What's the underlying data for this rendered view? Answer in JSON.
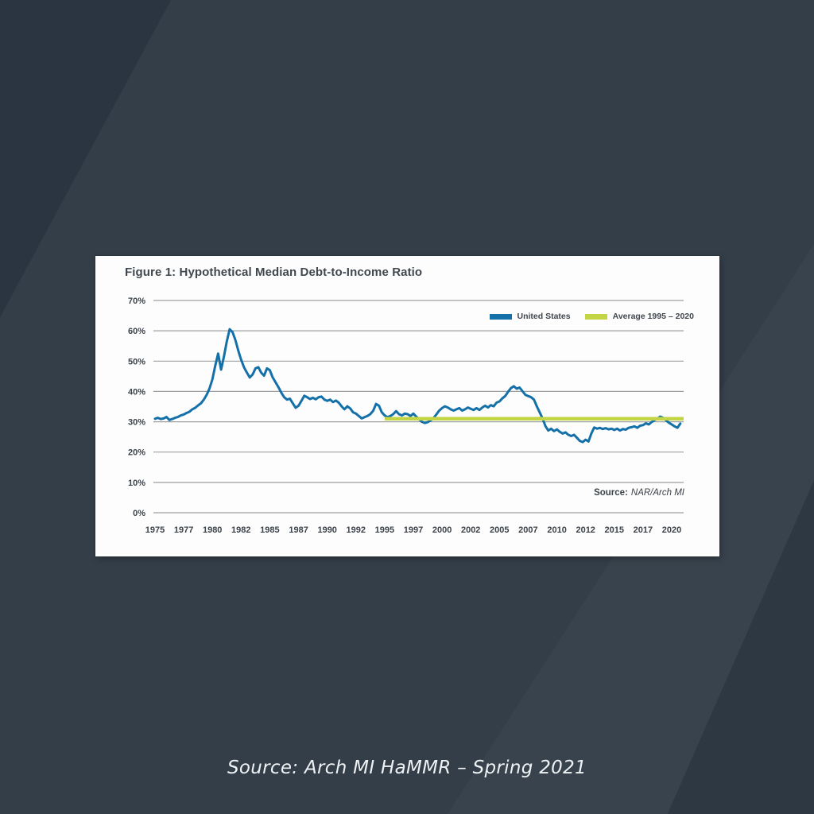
{
  "page": {
    "caption": "Source: Arch MI HaMMR – Spring 2021",
    "background": {
      "base_color": "#333e48",
      "top_left_shape_color": "#2b3541",
      "bottom_right_shape_color": "#2d3842",
      "card_color": "#fdfdfd"
    }
  },
  "figure": {
    "title": "Figure 1: Hypothetical Median Debt-to-Income Ratio",
    "source_label": "Source:",
    "source_value": "NAR/Arch MI"
  },
  "chart_data": {
    "type": "line",
    "title": "Figure 1: Hypothetical Median Debt-to-Income Ratio",
    "xlabel": "",
    "ylabel": "",
    "ylim": [
      0,
      70
    ],
    "grid": "horizontal-only",
    "legend_position": "top-right-inside",
    "yticks": [
      70,
      60,
      50,
      40,
      30,
      20,
      10,
      0
    ],
    "ytick_format": "percent",
    "xticks": [
      "1975",
      "1977",
      "1980",
      "1982",
      "1985",
      "1987",
      "1990",
      "1992",
      "1995",
      "1997",
      "2000",
      "2002",
      "2005",
      "2007",
      "2010",
      "2012",
      "2015",
      "2017",
      "2020"
    ],
    "x_start": 1975.0,
    "x_step": 0.25,
    "source_note": "Source: NAR/Arch MI",
    "series": [
      {
        "name": "United States",
        "color": "#1470a8",
        "values": [
          31.0,
          31.3,
          30.9,
          31.1,
          31.6,
          30.6,
          30.9,
          31.3,
          31.6,
          32.1,
          32.4,
          32.9,
          33.3,
          34.1,
          34.6,
          35.4,
          36.1,
          37.3,
          38.9,
          41.0,
          44.0,
          48.5,
          52.5,
          47.2,
          51.5,
          56.5,
          60.5,
          59.6,
          57.0,
          53.5,
          50.5,
          48.0,
          46.2,
          44.6,
          45.6,
          47.6,
          48.0,
          46.2,
          45.2,
          47.6,
          47.0,
          44.6,
          43.0,
          41.4,
          39.6,
          38.1,
          37.3,
          37.6,
          36.1,
          34.6,
          35.3,
          36.9,
          38.6,
          38.1,
          37.5,
          37.9,
          37.4,
          38.1,
          38.3,
          37.3,
          36.9,
          37.3,
          36.5,
          37.0,
          36.3,
          35.1,
          34.1,
          35.1,
          34.4,
          33.1,
          32.7,
          31.9,
          31.1,
          31.5,
          31.9,
          32.5,
          33.6,
          35.9,
          35.3,
          33.1,
          32.1,
          31.5,
          31.9,
          32.5,
          33.5,
          32.5,
          32.1,
          32.7,
          32.5,
          31.9,
          32.7,
          31.7,
          30.8,
          30.0,
          29.6,
          29.9,
          30.4,
          31.2,
          32.4,
          33.7,
          34.5,
          35.1,
          34.7,
          34.1,
          33.7,
          34.1,
          34.5,
          33.7,
          34.1,
          34.7,
          34.3,
          33.9,
          34.5,
          33.9,
          34.7,
          35.3,
          34.7,
          35.5,
          35.1,
          36.3,
          36.7,
          37.7,
          38.5,
          39.9,
          41.1,
          41.7,
          40.9,
          41.3,
          40.1,
          38.9,
          38.5,
          38.1,
          37.3,
          35.1,
          33.1,
          31.1,
          28.6,
          27.1,
          27.7,
          26.9,
          27.5,
          26.7,
          26.1,
          26.5,
          25.7,
          25.3,
          25.7,
          24.7,
          23.7,
          23.3,
          24.1,
          23.5,
          26.1,
          28.1,
          27.7,
          28.0,
          27.6,
          27.9,
          27.5,
          27.7,
          27.3,
          27.7,
          27.1,
          27.6,
          27.4,
          28.0,
          28.2,
          28.5,
          28.0,
          28.7,
          28.9,
          29.5,
          29.1,
          29.9,
          30.5,
          31.1,
          31.7,
          31.3,
          30.5,
          29.7,
          29.1,
          28.5,
          28.0,
          29.4
        ]
      },
      {
        "name": "Average 1995 – 2020",
        "color": "#c3d545",
        "value": 31.0,
        "x_range": [
          1995,
          2021
        ]
      }
    ]
  }
}
